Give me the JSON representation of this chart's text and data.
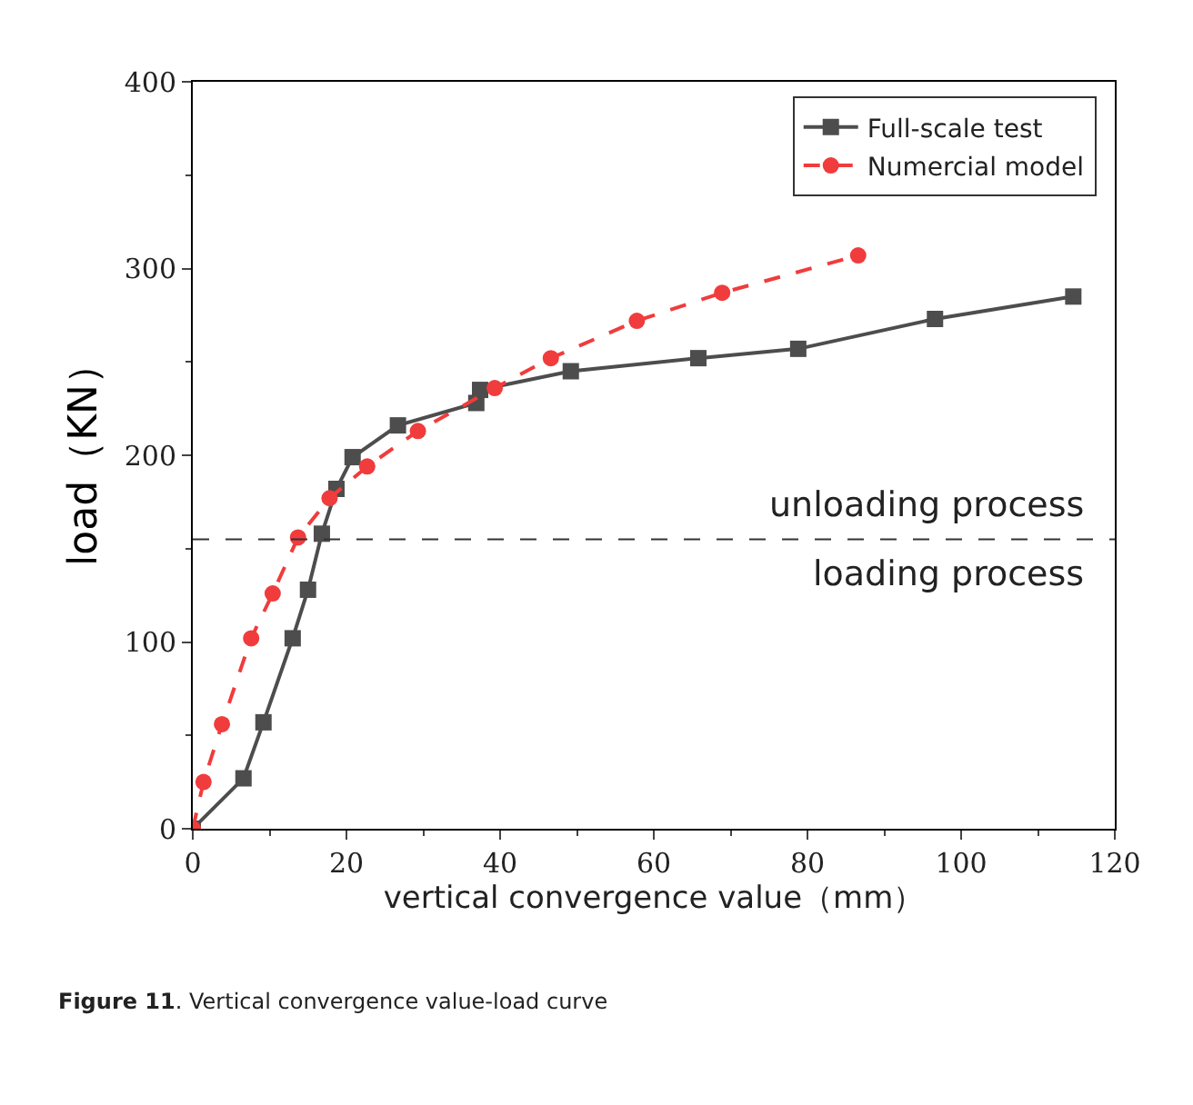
{
  "chart_data": {
    "type": "line",
    "xlabel": "vertical convergence value（mm）",
    "ylabel": "load（KN）",
    "series": [
      {
        "name": "Full-scale test",
        "color": "#4d4d4d",
        "marker": "square",
        "line_style": "solid",
        "x": [
          0,
          6.6,
          9.2,
          13,
          15,
          16.8,
          18.7,
          20.8,
          26.7,
          36.9,
          37.4,
          49.2,
          65.8,
          78.8,
          96.6,
          114.6
        ],
        "values": [
          0,
          27,
          57,
          102,
          128,
          158,
          182,
          199,
          216,
          228,
          235,
          245,
          252,
          257,
          273,
          285
        ]
      },
      {
        "name": "Numercial model",
        "color": "#f03c3c",
        "marker": "circle",
        "line_style": "dashed",
        "x": [
          0,
          1.4,
          3.8,
          7.6,
          10.4,
          13.7,
          17.8,
          22.7,
          29.3,
          39.3,
          46.6,
          57.8,
          68.9,
          86.6
        ],
        "values": [
          0,
          25,
          56,
          102,
          126,
          156,
          177,
          194,
          213,
          236,
          252,
          272,
          287,
          307
        ]
      }
    ],
    "xlim": [
      0,
      120
    ],
    "xticks": [
      0,
      20,
      40,
      60,
      80,
      100,
      120
    ],
    "ylim": [
      0,
      400
    ],
    "yticks": [
      0,
      100,
      200,
      300,
      400
    ],
    "ref_lines": [
      {
        "axis": "y",
        "value": 155,
        "label": null,
        "color": "#333333",
        "line_style": "dashed"
      }
    ],
    "annotations": [
      "unloading process",
      "loading process",
      "Figure 11. Vertical convergence value-load curve"
    ],
    "legend": "top right"
  }
}
